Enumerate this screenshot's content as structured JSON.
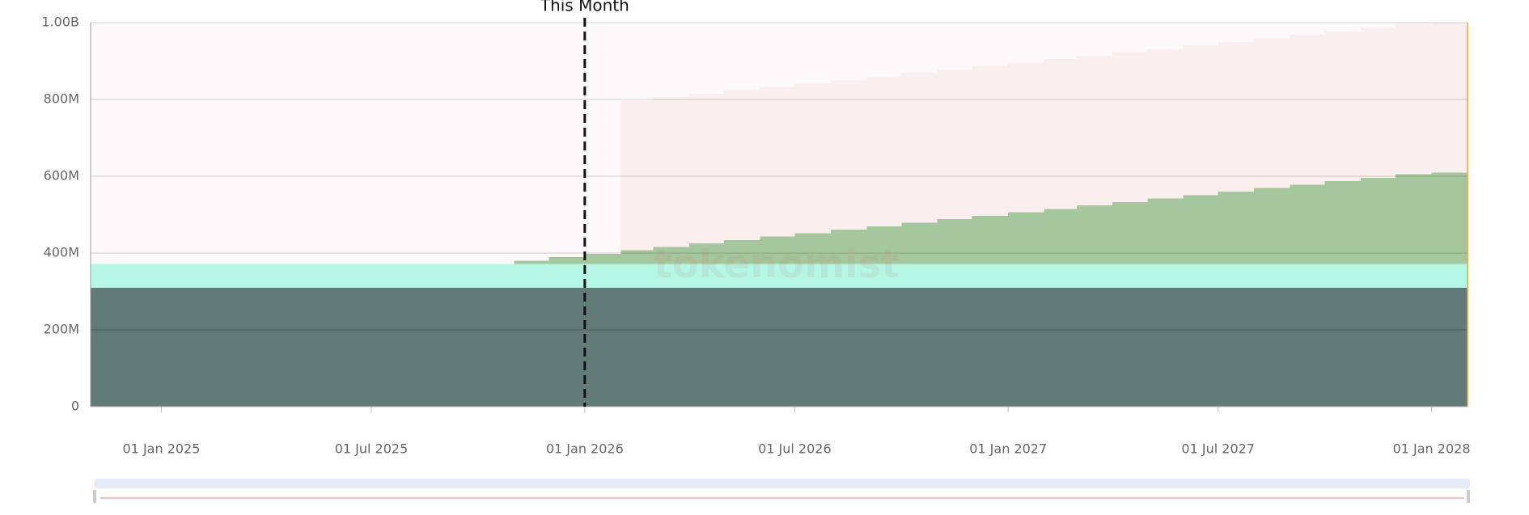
{
  "chart_data": {
    "type": "stacked-step-area",
    "x": [
      "2024-11-01",
      "2024-12-01",
      "2025-01-01",
      "2025-02-01",
      "2025-03-01",
      "2025-04-01",
      "2025-05-01",
      "2025-06-01",
      "2025-07-01",
      "2025-08-01",
      "2025-09-01",
      "2025-10-01",
      "2025-11-01",
      "2025-12-01",
      "2026-01-01",
      "2026-02-01",
      "2026-03-01",
      "2026-04-01",
      "2026-05-01",
      "2026-06-01",
      "2026-07-01",
      "2026-08-01",
      "2026-09-01",
      "2026-10-01",
      "2026-11-01",
      "2026-12-01",
      "2027-01-01",
      "2027-02-01",
      "2027-03-01",
      "2027-04-01",
      "2027-05-01",
      "2027-06-01",
      "2027-07-01",
      "2027-08-01",
      "2027-09-01",
      "2027-10-01",
      "2027-11-01",
      "2027-12-01",
      "2028-01-01",
      "2028-02-01"
    ],
    "series": [
      {
        "color": "#627a78",
        "values": [
          310000000,
          310000000,
          310000000,
          310000000,
          310000000,
          310000000,
          310000000,
          310000000,
          310000000,
          310000000,
          310000000,
          310000000,
          310000000,
          310000000,
          310000000,
          310000000,
          310000000,
          310000000,
          310000000,
          310000000,
          310000000,
          310000000,
          310000000,
          310000000,
          310000000,
          310000000,
          310000000,
          310000000,
          310000000,
          310000000,
          310000000,
          310000000,
          310000000,
          310000000,
          310000000,
          310000000,
          310000000,
          310000000,
          310000000,
          310000000
        ]
      },
      {
        "color": "#b4f7e4",
        "values": [
          62000000,
          62000000,
          62000000,
          62000000,
          62000000,
          62000000,
          62000000,
          62000000,
          62000000,
          62000000,
          62000000,
          62000000,
          62000000,
          62000000,
          62000000,
          62000000,
          62000000,
          62000000,
          62000000,
          62000000,
          62000000,
          62000000,
          62000000,
          62000000,
          62000000,
          62000000,
          62000000,
          62000000,
          62000000,
          62000000,
          62000000,
          62000000,
          62000000,
          62000000,
          62000000,
          62000000,
          62000000,
          62000000,
          62000000,
          62000000
        ]
      },
      {
        "color": "#a5c79d",
        "values": [
          null,
          null,
          null,
          null,
          null,
          null,
          null,
          null,
          null,
          null,
          null,
          null,
          8000000,
          17000000,
          26000000,
          35000000,
          44000000,
          53000000,
          62000000,
          71000000,
          80000000,
          89000000,
          98000000,
          107000000,
          116000000,
          125000000,
          134000000,
          143000000,
          152000000,
          161000000,
          170000000,
          179000000,
          188000000,
          197000000,
          206000000,
          215000000,
          224000000,
          233000000,
          238000000,
          238000000
        ]
      },
      {
        "color": "#fbeeee",
        "values": [
          null,
          null,
          null,
          null,
          null,
          null,
          null,
          null,
          null,
          null,
          null,
          null,
          null,
          null,
          null,
          390000000,
          390000000,
          390000000,
          390000000,
          390000000,
          390000000,
          390000000,
          390000000,
          390000000,
          390000000,
          390000000,
          390000000,
          390000000,
          390000000,
          390000000,
          390000000,
          390000000,
          390000000,
          390000000,
          390000000,
          390000000,
          390000000,
          390000000,
          390000000,
          390000000
        ]
      }
    ],
    "xlim": [
      "2024-11-01",
      "2028-02-01"
    ],
    "xticks": [
      {
        "value": "2025-01-01",
        "label": "01 Jan 2025"
      },
      {
        "value": "2025-07-01",
        "label": "01 Jul 2025"
      },
      {
        "value": "2026-01-01",
        "label": "01 Jan 2026"
      },
      {
        "value": "2026-07-01",
        "label": "01 Jul 2026"
      },
      {
        "value": "2027-01-01",
        "label": "01 Jan 2027"
      },
      {
        "value": "2027-07-01",
        "label": "01 Jul 2027"
      },
      {
        "value": "2028-01-01",
        "label": "01 Jan 2028"
      }
    ],
    "ylim": [
      0,
      1000000000
    ],
    "yticks": [
      0,
      {
        "value": 200000000,
        "label": "200M"
      },
      {
        "value": 400000000,
        "label": "400M"
      },
      {
        "value": 600000000,
        "label": "600M"
      },
      {
        "value": 800000000,
        "label": "800M"
      },
      {
        "value": 1000000000,
        "label": "1.00B"
      }
    ],
    "grid": true,
    "annotations": [
      {
        "text": "This Month",
        "x": "2026-01-01"
      }
    ],
    "watermark": "tokenomist"
  }
}
